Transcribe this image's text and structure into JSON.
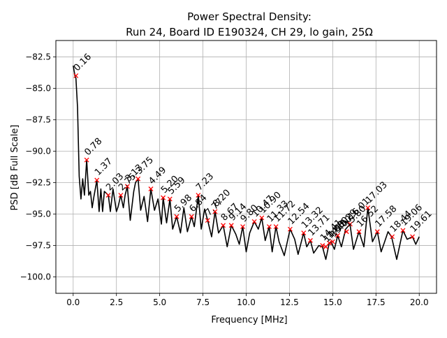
{
  "chart_data": {
    "type": "line",
    "title_line1": "Power Spectral Density:",
    "title_line2": "Run 24, Board ID E190324, CH 29, lo gain, 25Ω",
    "xlabel": "Frequency [MHz]",
    "ylabel": "PSD [dB Full Scale]",
    "xlim": [
      -1.0,
      21.0
    ],
    "ylim": [
      -101.3,
      -81.2
    ],
    "xticks": [
      0.0,
      2.5,
      5.0,
      7.5,
      10.0,
      12.5,
      15.0,
      17.5,
      20.0
    ],
    "xtick_labels": [
      "0.0",
      "2.5",
      "5.0",
      "7.5",
      "10.0",
      "12.5",
      "15.0",
      "17.5",
      "20.0"
    ],
    "yticks": [
      -82.5,
      -85.0,
      -87.5,
      -90.0,
      -92.5,
      -95.0,
      -97.5,
      -100.0
    ],
    "ytick_labels": [
      "−82.5",
      "−85.0",
      "−87.5",
      "−90.0",
      "−92.5",
      "−95.0",
      "−97.5",
      "−100.0"
    ],
    "grid": true,
    "line_color": "#000000",
    "marker_color": "#ff0000",
    "series": [
      {
        "x": [
          0.0,
          0.1,
          0.16,
          0.25,
          0.35,
          0.45,
          0.55,
          0.65,
          0.78,
          0.9,
          1.0,
          1.1,
          1.2,
          1.37,
          1.5,
          1.6,
          1.7,
          1.8,
          2.03,
          2.15,
          2.3,
          2.5,
          2.6,
          2.75,
          2.9,
          3.0,
          3.13,
          3.3,
          3.5,
          3.6,
          3.75,
          3.9,
          4.1,
          4.3,
          4.49,
          4.7,
          4.9,
          5.1,
          5.2,
          5.4,
          5.59,
          5.75,
          5.98,
          6.2,
          6.4,
          6.6,
          6.84,
          7.0,
          7.23,
          7.4,
          7.6,
          7.77,
          8.0,
          8.2,
          8.4,
          8.67,
          8.9,
          9.14,
          9.4,
          9.6,
          9.8,
          10.0,
          10.2,
          10.47,
          10.7,
          10.9,
          11.1,
          11.33,
          11.5,
          11.72,
          11.9,
          12.2,
          12.54,
          12.8,
          13.0,
          13.32,
          13.5,
          13.71,
          13.9,
          14.2,
          14.41,
          14.6,
          14.8,
          14.9,
          15.1,
          15.29,
          15.5,
          15.75,
          16.0,
          16.2,
          16.52,
          16.8,
          17.03,
          17.3,
          17.58,
          17.8,
          18.0,
          18.2,
          18.4,
          18.7,
          19.06,
          19.3,
          19.61,
          19.8,
          20.0
        ],
        "y": [
          -83.2,
          -84.0,
          -84.2,
          -86.5,
          -92.0,
          -93.8,
          -92.2,
          -93.5,
          -90.7,
          -93.5,
          -93.2,
          -94.5,
          -93.6,
          -92.3,
          -94.8,
          -93.0,
          -94.8,
          -93.2,
          -93.5,
          -94.8,
          -93.0,
          -94.8,
          -94.4,
          -93.5,
          -94.5,
          -93.5,
          -92.8,
          -95.5,
          -93.2,
          -92.5,
          -92.2,
          -94.7,
          -93.6,
          -95.6,
          -93.0,
          -94.7,
          -93.8,
          -95.8,
          -93.7,
          -95.7,
          -93.8,
          -96.2,
          -95.2,
          -96.5,
          -94.5,
          -96.4,
          -95.2,
          -96.0,
          -93.5,
          -96.2,
          -94.6,
          -95.5,
          -96.8,
          -94.8,
          -96.5,
          -95.9,
          -97.6,
          -95.9,
          -96.6,
          -97.4,
          -96.0,
          -98.0,
          -96.5,
          -95.6,
          -96.2,
          -95.3,
          -97.1,
          -96.0,
          -98.0,
          -96.0,
          -97.2,
          -98.3,
          -96.2,
          -97.0,
          -98.2,
          -96.5,
          -97.6,
          -97.1,
          -98.1,
          -97.5,
          -97.6,
          -98.6,
          -97.3,
          -97.2,
          -97.8,
          -96.7,
          -97.6,
          -96.2,
          -95.8,
          -97.8,
          -96.4,
          -97.6,
          -94.5,
          -97.2,
          -96.4,
          -98.0,
          -97.2,
          -96.4,
          -96.8,
          -98.6,
          -96.3,
          -97.0,
          -96.8,
          -97.4,
          -96.8
        ]
      }
    ],
    "peaks": {
      "x": [
        0.16,
        0.78,
        1.37,
        2.03,
        2.75,
        3.13,
        3.75,
        4.49,
        5.2,
        5.59,
        5.98,
        6.84,
        7.23,
        7.77,
        8.2,
        8.67,
        9.14,
        9.8,
        10.47,
        10.9,
        11.33,
        11.72,
        12.54,
        13.32,
        13.71,
        14.41,
        14.6,
        14.8,
        15.0,
        15.29,
        15.8,
        16.01,
        16.52,
        17.03,
        17.58,
        18.44,
        19.06,
        19.61
      ],
      "y": [
        -84.0,
        -90.7,
        -92.3,
        -93.5,
        -93.5,
        -92.8,
        -92.2,
        -93.0,
        -93.7,
        -93.8,
        -95.2,
        -95.2,
        -93.5,
        -95.5,
        -94.8,
        -95.9,
        -95.9,
        -96.0,
        -95.6,
        -95.3,
        -96.0,
        -96.0,
        -96.2,
        -96.5,
        -97.1,
        -97.5,
        -97.6,
        -97.3,
        -97.2,
        -96.7,
        -96.4,
        -95.8,
        -96.4,
        -94.5,
        -96.4,
        -96.8,
        -96.3,
        -96.8
      ],
      "labels": [
        "0.16",
        "0.78",
        "1.37",
        "2.03",
        "2.75",
        "3.13",
        "3.75",
        "4.49",
        "5.20",
        "5.59",
        "5.98",
        "6.84",
        "7.23",
        "7.77",
        "8.20",
        "8.67",
        "9.14",
        "9.80",
        "10.47",
        "10.90",
        "11.33",
        "11.72",
        "12.54",
        "13.32",
        "13.71",
        "14.41",
        "14.60",
        "14.80",
        "15.00",
        "15.29",
        "15.80",
        "16.01",
        "16.52",
        "17.03",
        "17.58",
        "18.44",
        "19.06",
        "19.61"
      ]
    }
  }
}
